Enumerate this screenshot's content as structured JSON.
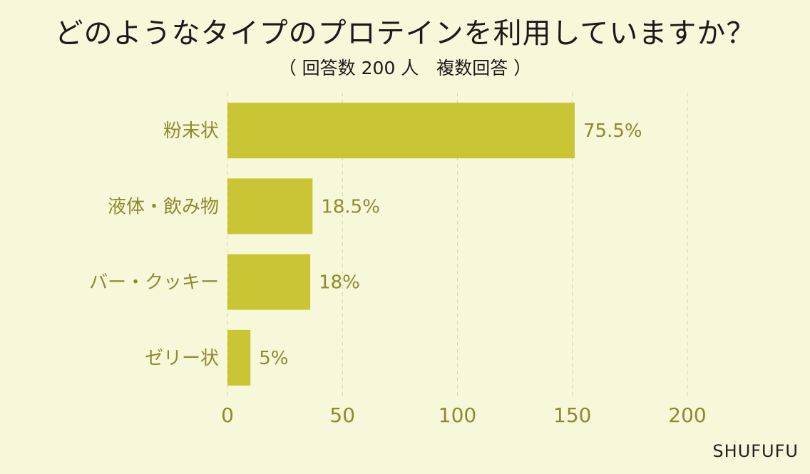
{
  "title": "どのようなタイプのプロテインを利用していますか？",
  "subtitle": "（ 回答数 200 人　複数回答 ）",
  "brand": "SHUFUFU",
  "colors": {
    "bar": "#cac535",
    "text": "#8e8a2e",
    "grid": "#d8d6b4",
    "background": "#f7f7d9"
  },
  "chart_data": {
    "type": "bar",
    "orientation": "horizontal",
    "categories": [
      "粉末状",
      "液体・飲み物",
      "バー・クッキー",
      "ゼリー状"
    ],
    "values": [
      151,
      37,
      36,
      10
    ],
    "data_labels": [
      "75.5%",
      "18.5%",
      "18%",
      "5%"
    ],
    "xlim": [
      0,
      200
    ],
    "xticks": [
      "0",
      "50",
      "100",
      "150",
      "200"
    ],
    "grid": true
  }
}
